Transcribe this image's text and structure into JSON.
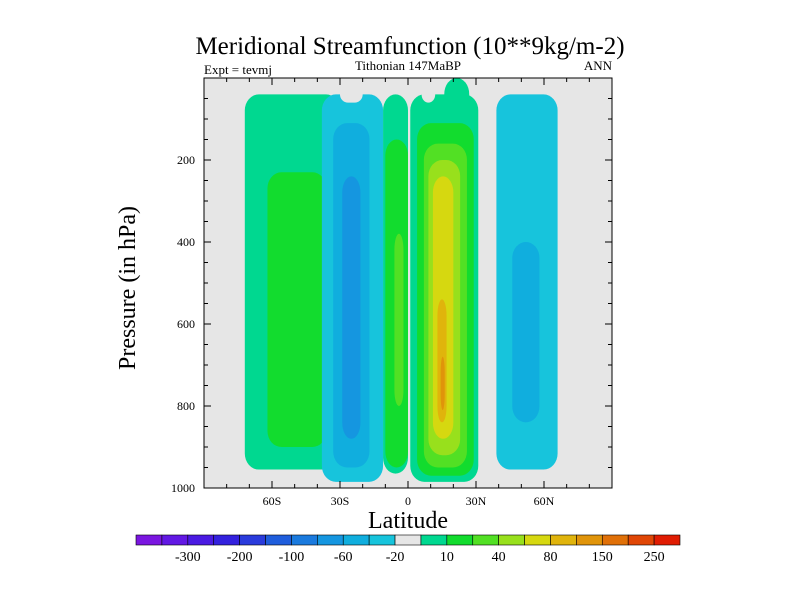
{
  "chart_data": {
    "type": "contour",
    "title": "Meridional Streamfunction (10**9kg/m-2)",
    "left_string": "Expt = tevmj",
    "center_string": "Tithonian 147MaBP",
    "right_string": "ANN",
    "xlabel": "Latitude",
    "ylabel": "Pressure (in hPa)",
    "xlim": [
      -90,
      90
    ],
    "ylim": [
      1000,
      0
    ],
    "x_ticks": [
      -60,
      -30,
      0,
      30,
      60
    ],
    "x_tick_labels": [
      "60S",
      "30S",
      "0",
      "30N",
      "60N"
    ],
    "y_ticks": [
      200,
      400,
      600,
      800,
      1000
    ],
    "y_tick_labels": [
      "200",
      "400",
      "600",
      "800",
      "1000"
    ],
    "missing_color": "#e6e6e6",
    "colorbar": {
      "colors": [
        "#7a16e0",
        "#6218e4",
        "#4a1ae2",
        "#3321de",
        "#2a3bdc",
        "#1f5ddc",
        "#1a7ade",
        "#1596e0",
        "#10aede",
        "#17c4dc",
        "#e6e6e6",
        "#00d890",
        "#12dc2e",
        "#52e024",
        "#98e01c",
        "#d6d810",
        "#e0b40c",
        "#e0940a",
        "#e07008",
        "#e04606",
        "#e01c02"
      ],
      "label_positions": [
        1,
        3,
        5,
        7,
        9,
        11,
        13,
        15,
        17,
        19
      ],
      "labels": [
        "-300",
        "-200",
        "-100",
        "-60",
        "-20",
        "10",
        "40",
        "80",
        "150",
        "250"
      ]
    },
    "cells": [
      {
        "name": "cell-southern-ferrel",
        "lat": -47,
        "p": 500,
        "levels": [
          {
            "value": 10,
            "color": "#00d890",
            "lat_left": -72,
            "lat_right": -30,
            "p_top": 40,
            "p_bottom": 955
          },
          {
            "value": 40,
            "color": "#12dc2e",
            "lat_left": -62,
            "lat_right": -36,
            "p_top": 230,
            "p_bottom": 900
          }
        ]
      },
      {
        "name": "cell-southern-hadley",
        "lat": -25,
        "p": 500,
        "levels": [
          {
            "value": -20,
            "color": "#17c4dc",
            "lat_left": -38,
            "lat_right": -11,
            "p_top": 40,
            "p_bottom": 985
          },
          {
            "value": -60,
            "color": "#10aede",
            "lat_left": -33,
            "lat_right": -17,
            "p_top": 110,
            "p_bottom": 950
          },
          {
            "value": -100,
            "color": "#1596e0",
            "lat_left": -29,
            "lat_right": -21,
            "p_top": 240,
            "p_bottom": 880
          }
        ]
      },
      {
        "name": "cell-equatorial",
        "lat": -5,
        "p": 500,
        "levels": [
          {
            "value": 10,
            "color": "#00d890",
            "lat_left": -11,
            "lat_right": 0,
            "p_top": 40,
            "p_bottom": 965
          },
          {
            "value": 40,
            "color": "#12dc2e",
            "lat_left": -10,
            "lat_right": 0,
            "p_top": 150,
            "p_bottom": 950
          },
          {
            "value": 80,
            "color": "#52e024",
            "lat_left": -6,
            "lat_right": -2,
            "p_top": 380,
            "p_bottom": 800
          }
        ]
      },
      {
        "name": "cell-northern-hadley",
        "lat": 15,
        "p": 550,
        "levels": [
          {
            "value": 10,
            "color": "#00d890",
            "lat_left": 1,
            "lat_right": 31,
            "p_top": 40,
            "p_bottom": 985
          },
          {
            "value": 40,
            "color": "#12dc2e",
            "lat_left": 4,
            "lat_right": 29,
            "p_top": 110,
            "p_bottom": 970
          },
          {
            "value": 80,
            "color": "#52e024",
            "lat_left": 7,
            "lat_right": 26,
            "p_top": 160,
            "p_bottom": 950
          },
          {
            "value": 150,
            "color": "#98e01c",
            "lat_left": 9,
            "lat_right": 23,
            "p_top": 200,
            "p_bottom": 920
          },
          {
            "value": 200,
            "color": "#d6d810",
            "lat_left": 11,
            "lat_right": 20,
            "p_top": 240,
            "p_bottom": 880
          },
          {
            "value": 250,
            "color": "#e0b40c",
            "lat_left": 13,
            "lat_right": 17,
            "p_top": 540,
            "p_bottom": 840
          },
          {
            "value": 300,
            "color": "#e0940a",
            "lat_left": 14.4,
            "lat_right": 16.2,
            "p_top": 680,
            "p_bottom": 810
          }
        ]
      },
      {
        "name": "cell-northern-ferrel",
        "lat": 52,
        "p": 550,
        "levels": [
          {
            "value": -20,
            "color": "#17c4dc",
            "lat_left": 39,
            "lat_right": 66,
            "p_top": 40,
            "p_bottom": 955
          },
          {
            "value": -60,
            "color": "#10aede",
            "lat_left": 46,
            "lat_right": 58,
            "p_top": 400,
            "p_bottom": 840
          }
        ]
      },
      {
        "name": "cell-upper-equatorial",
        "lat": 22,
        "p": 40,
        "levels": [
          {
            "value": 10,
            "color": "#00d890",
            "lat_left": 16,
            "lat_right": 27,
            "p_top": 0,
            "p_bottom": 90
          }
        ]
      }
    ],
    "boundary_features": [
      {
        "name": "southern-hadley-notch",
        "color": "#e6e6e6",
        "lat_left": -30,
        "lat_right": -20,
        "p_top": 0,
        "p_bottom": 60
      },
      {
        "name": "hadley-top-notch",
        "color": "#e6e6e6",
        "lat_left": 6,
        "lat_right": 12,
        "p_top": 0,
        "p_bottom": 60
      }
    ]
  }
}
